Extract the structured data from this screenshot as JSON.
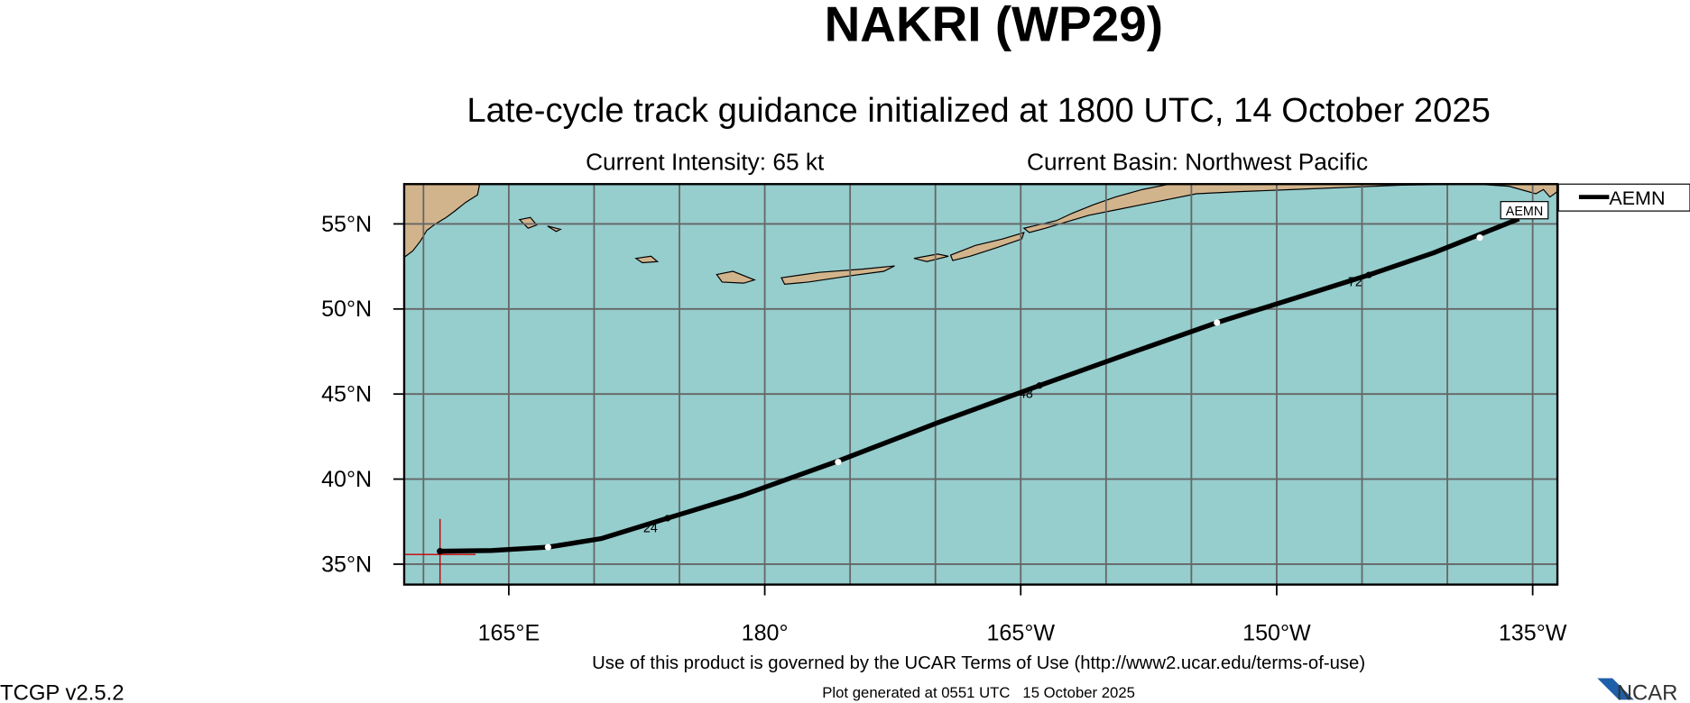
{
  "header": {
    "title": "NAKRI (WP29)",
    "subtitle": "Late-cycle track guidance initialized at 1800 UTC, 14 October 2025",
    "intensity": "Current Intensity: 65 kt",
    "basin": "Current Basin: Northwest Pacific"
  },
  "map": {
    "type": "track",
    "lonlim": [
      158.87,
      226.45
    ],
    "latlim": [
      33.8,
      57.34
    ],
    "lonticks": [
      {
        "value": 165,
        "label": "165°E"
      },
      {
        "value": 180,
        "label": "180°"
      },
      {
        "value": 195,
        "label": "165°W"
      },
      {
        "value": 210,
        "label": "150°W"
      },
      {
        "value": 225,
        "label": "135°W"
      }
    ],
    "latticks": [
      {
        "value": 35,
        "label": "35°N"
      },
      {
        "value": 40,
        "label": "40°N"
      },
      {
        "value": 45,
        "label": "45°N"
      },
      {
        "value": 50,
        "label": "50°N"
      },
      {
        "value": 55,
        "label": "55°N"
      }
    ],
    "lon_grid": [
      160,
      165,
      170,
      175,
      180,
      185,
      190,
      195,
      200,
      205,
      210,
      215,
      220,
      225
    ],
    "grid": true,
    "ocean_color": "#96cdcd",
    "land_color": "#d2b48c",
    "legend": "top-right-outside",
    "track": {
      "name": "AEMN",
      "color": "#000000",
      "lon": [
        160.97,
        164.0,
        167.3,
        170.4,
        174.3,
        178.7,
        184.4,
        190.1,
        196.1,
        201.4,
        206.5,
        210.0,
        215.4,
        219.2,
        224.2
      ],
      "lat": [
        35.76,
        35.8,
        36.0,
        36.5,
        37.7,
        39.05,
        41.1,
        43.3,
        45.5,
        47.4,
        49.2,
        50.3,
        52.0,
        53.3,
        55.3
      ]
    },
    "markers": [
      {
        "lon": 167.3,
        "lat": 36.0,
        "color": "#ffffff"
      },
      {
        "lon": 184.3,
        "lat": 41.0,
        "color": "#ffffff"
      },
      {
        "lon": 206.5,
        "lat": 49.2,
        "color": "#ffffff"
      },
      {
        "lon": 221.9,
        "lat": 54.2,
        "color": "#ffffff"
      },
      {
        "lon": 174.3,
        "lat": 37.7,
        "color": "#000000"
      },
      {
        "lon": 196.1,
        "lat": 45.5,
        "color": "#000000"
      },
      {
        "lon": 215.4,
        "lat": 52.0,
        "color": "#000000"
      },
      {
        "lon": 160.97,
        "lat": 35.76,
        "color": "#000000"
      }
    ],
    "tau_labels": [
      {
        "hour": 24,
        "lon": 173.3,
        "lat": 37.2
      },
      {
        "hour": 48,
        "lon": 195.3,
        "lat": 45.1
      },
      {
        "hour": 72,
        "lon": 214.6,
        "lat": 51.65
      }
    ]
  },
  "footer": {
    "terms": "Use of this product is governed by the UCAR Terms of Use (http://www2.ucar.edu/terms-of-use)",
    "generated": "Plot generated at 0551 UTC   15 October 2025",
    "version": "TCGP v2.5.2",
    "logo": "NCAR"
  }
}
